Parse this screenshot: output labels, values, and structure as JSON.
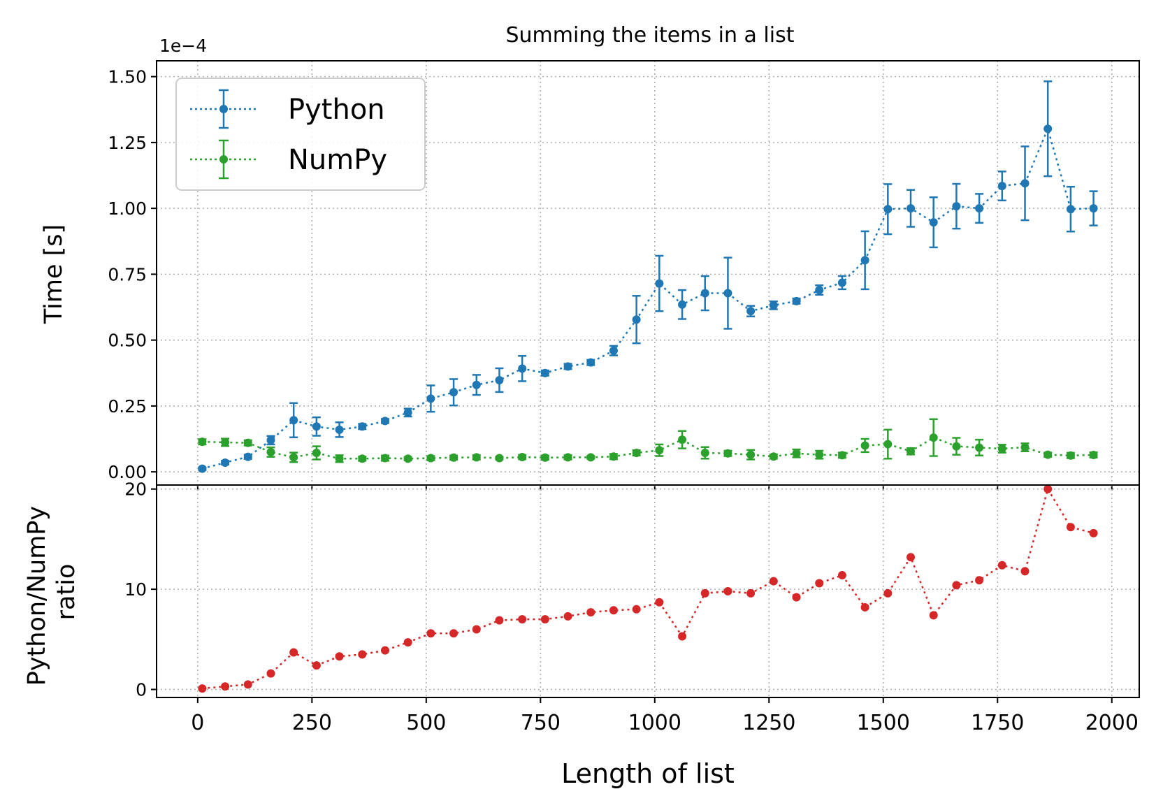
{
  "chart_data": [
    {
      "type": "line",
      "title": "Summing the items in a list",
      "xlabel": "",
      "ylabel": "Time [s]",
      "y_scale_label": "1e−4",
      "xlim": [
        -90,
        2060
      ],
      "ylim": [
        -0.05,
        1.56
      ],
      "x_ticks": [
        0,
        250,
        500,
        750,
        1000,
        1250,
        1500,
        1750,
        2000
      ],
      "y_ticks": [
        0.0,
        0.25,
        0.5,
        0.75,
        1.0,
        1.25,
        1.5
      ],
      "y_tick_labels": [
        "0.00",
        "0.25",
        "0.50",
        "0.75",
        "1.00",
        "1.25",
        "1.50"
      ],
      "grid": true,
      "legend": "top-left",
      "x": [
        10,
        60,
        110,
        160,
        210,
        260,
        310,
        360,
        410,
        460,
        510,
        560,
        610,
        660,
        710,
        760,
        810,
        860,
        910,
        960,
        1010,
        1060,
        1110,
        1160,
        1210,
        1260,
        1310,
        1360,
        1410,
        1460,
        1510,
        1560,
        1610,
        1660,
        1710,
        1760,
        1810,
        1860,
        1910,
        1960
      ],
      "series": [
        {
          "name": "Python",
          "color": "#1f77b4",
          "values": [
            0.012,
            0.035,
            0.057,
            0.12,
            0.196,
            0.172,
            0.16,
            0.172,
            0.193,
            0.225,
            0.278,
            0.302,
            0.33,
            0.348,
            0.392,
            0.375,
            0.4,
            0.415,
            0.46,
            0.578,
            0.715,
            0.635,
            0.678,
            0.678,
            0.61,
            0.632,
            0.648,
            0.69,
            0.718,
            0.803,
            0.997,
            1.0,
            0.947,
            1.008,
            1.0,
            1.085,
            1.095,
            1.302,
            0.997,
            1.0
          ],
          "errors": [
            0.005,
            0.007,
            0.008,
            0.016,
            0.065,
            0.035,
            0.028,
            0.01,
            0.008,
            0.015,
            0.05,
            0.05,
            0.038,
            0.045,
            0.048,
            0.01,
            0.01,
            0.01,
            0.018,
            0.09,
            0.105,
            0.055,
            0.065,
            0.135,
            0.02,
            0.015,
            0.01,
            0.018,
            0.025,
            0.11,
            0.095,
            0.07,
            0.095,
            0.085,
            0.055,
            0.055,
            0.14,
            0.18,
            0.085,
            0.065
          ]
        },
        {
          "name": "NumPy",
          "color": "#2ca02c",
          "values": [
            0.114,
            0.112,
            0.11,
            0.075,
            0.055,
            0.072,
            0.05,
            0.05,
            0.052,
            0.05,
            0.052,
            0.054,
            0.055,
            0.052,
            0.056,
            0.054,
            0.055,
            0.055,
            0.058,
            0.072,
            0.082,
            0.122,
            0.072,
            0.07,
            0.065,
            0.058,
            0.07,
            0.065,
            0.063,
            0.1,
            0.105,
            0.078,
            0.13,
            0.097,
            0.092,
            0.088,
            0.093,
            0.065,
            0.062,
            0.064
          ],
          "errors": [
            0.01,
            0.014,
            0.01,
            0.018,
            0.018,
            0.025,
            0.013,
            0.008,
            0.01,
            0.006,
            0.008,
            0.008,
            0.008,
            0.005,
            0.008,
            0.008,
            0.008,
            0.005,
            0.01,
            0.01,
            0.022,
            0.033,
            0.022,
            0.01,
            0.018,
            0.008,
            0.015,
            0.015,
            0.01,
            0.025,
            0.055,
            0.012,
            0.07,
            0.032,
            0.03,
            0.015,
            0.015,
            0.008,
            0.01,
            0.01
          ]
        }
      ]
    },
    {
      "type": "line",
      "title": "",
      "xlabel": "Length of list",
      "ylabel": "Python/NumPy\nratio",
      "xlim": [
        -90,
        2060
      ],
      "ylim": [
        -0.8,
        20.4
      ],
      "x_ticks": [
        0,
        250,
        500,
        750,
        1000,
        1250,
        1500,
        1750,
        2000
      ],
      "y_ticks": [
        0,
        10,
        20
      ],
      "grid": true,
      "x": [
        10,
        60,
        110,
        160,
        210,
        260,
        310,
        360,
        410,
        460,
        510,
        560,
        610,
        660,
        710,
        760,
        810,
        860,
        910,
        960,
        1010,
        1060,
        1110,
        1160,
        1210,
        1260,
        1310,
        1360,
        1410,
        1460,
        1510,
        1560,
        1610,
        1660,
        1710,
        1760,
        1810,
        1860,
        1910,
        1960
      ],
      "series": [
        {
          "color": "#d62728",
          "values": [
            0.1,
            0.3,
            0.5,
            1.6,
            3.7,
            2.4,
            3.3,
            3.5,
            3.9,
            4.7,
            5.6,
            5.6,
            6.0,
            6.9,
            7.0,
            7.0,
            7.3,
            7.7,
            7.9,
            8.0,
            8.7,
            5.3,
            9.6,
            9.8,
            9.6,
            10.8,
            9.2,
            10.6,
            11.4,
            8.2,
            9.6,
            13.2,
            7.4,
            10.4,
            10.9,
            12.4,
            11.8,
            20.0,
            16.2,
            15.6
          ]
        }
      ]
    }
  ]
}
